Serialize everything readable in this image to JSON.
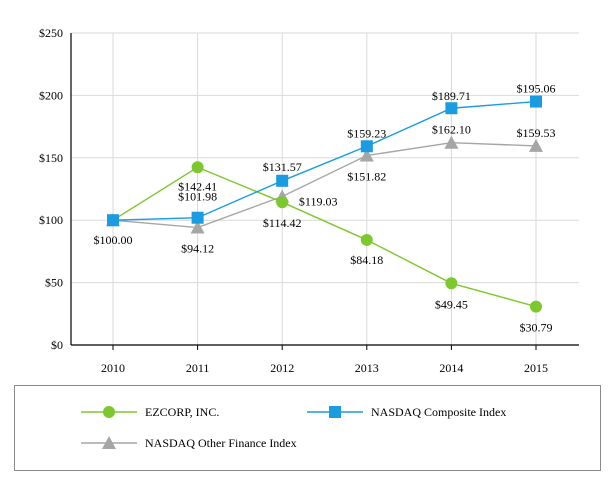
{
  "chart_data": {
    "type": "line",
    "title": "",
    "xlabel": "",
    "ylabel": "",
    "categories": [
      "2010",
      "2011",
      "2012",
      "2013",
      "2014",
      "2015"
    ],
    "ylim": [
      0,
      250
    ],
    "y_ticks": [
      0,
      50,
      100,
      150,
      200,
      250
    ],
    "y_tick_labels": [
      "$0",
      "$50",
      "$100",
      "$150",
      "$200",
      "$250"
    ],
    "grid": true,
    "legend_position": "bottom",
    "series": [
      {
        "name": "EZCORP, INC.",
        "marker": "circle",
        "color": "#7dc82e",
        "values": [
          100.0,
          142.41,
          114.42,
          84.18,
          49.45,
          30.79
        ],
        "labels": [
          "$100.00",
          "$142.41",
          "$114.42",
          "$84.18",
          "$49.45",
          "$30.79"
        ]
      },
      {
        "name": "NASDAQ Composite Index",
        "marker": "square",
        "color": "#1b9be0",
        "values": [
          100.0,
          101.98,
          131.57,
          159.23,
          189.71,
          195.06
        ],
        "labels": [
          "",
          "$101.98",
          "$131.57",
          "$159.23",
          "$189.71",
          "$195.06"
        ]
      },
      {
        "name": "NASDAQ Other Finance Index",
        "marker": "triangle",
        "color": "#a6a6a6",
        "values": [
          100.0,
          94.12,
          119.03,
          151.82,
          162.1,
          159.53
        ],
        "labels": [
          "",
          "$94.12",
          "$119.03",
          "$151.82",
          "$162.10",
          "$159.53"
        ]
      }
    ]
  }
}
